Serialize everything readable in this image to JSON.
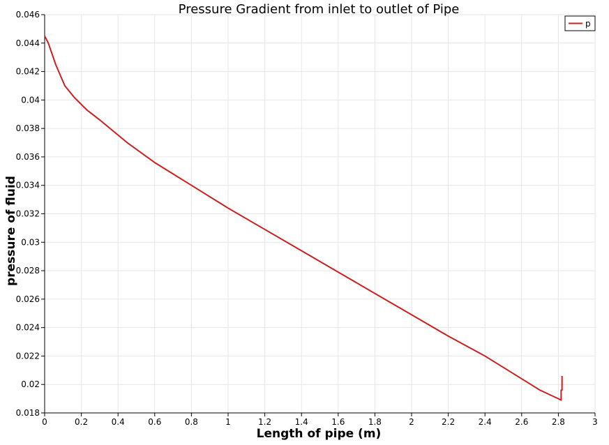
{
  "chart_data": {
    "type": "line",
    "title": "Pressure Gradient from inlet to outlet of Pipe",
    "xlabel": "Length of pipe (m)",
    "ylabel": "pressure of fluid",
    "xlim": [
      0,
      3
    ],
    "ylim": [
      0.018,
      0.046
    ],
    "x_ticks": [
      "0",
      "0.2",
      "0.4",
      "0.6",
      "0.8",
      "1",
      "1.2",
      "1.4",
      "1.6",
      "1.8",
      "2",
      "2.2",
      "2.4",
      "2.6",
      "2.8",
      "3"
    ],
    "x_tick_values": [
      0,
      0.2,
      0.4,
      0.6,
      0.8,
      1,
      1.2,
      1.4,
      1.6,
      1.8,
      2,
      2.2,
      2.4,
      2.6,
      2.8,
      3
    ],
    "y_ticks": [
      "0.018",
      "0.02",
      "0.022",
      "0.024",
      "0.026",
      "0.028",
      "0.03",
      "0.032",
      "0.034",
      "0.036",
      "0.038",
      "0.04",
      "0.042",
      "0.044",
      "0.046"
    ],
    "y_tick_values": [
      0.018,
      0.02,
      0.022,
      0.024,
      0.026,
      0.028,
      0.03,
      0.032,
      0.034,
      0.036,
      0.038,
      0.04,
      0.042,
      0.044,
      0.046
    ],
    "grid": true,
    "legend": {
      "position": "top-right",
      "entries": [
        "p"
      ]
    },
    "series": [
      {
        "name": "p",
        "color": "#cc1f1f",
        "points": [
          [
            0,
            0.0445
          ],
          [
            0.02,
            0.044
          ],
          [
            0.06,
            0.0425
          ],
          [
            0.11,
            0.041
          ],
          [
            0.16,
            0.0402
          ],
          [
            0.23,
            0.0393
          ],
          [
            0.3,
            0.0386
          ],
          [
            0.45,
            0.037
          ],
          [
            0.6,
            0.0356
          ],
          [
            0.7,
            0.0348
          ],
          [
            0.8,
            0.034
          ],
          [
            1.0,
            0.0324
          ],
          [
            1.2,
            0.0309
          ],
          [
            1.4,
            0.0294
          ],
          [
            1.6,
            0.0279
          ],
          [
            1.8,
            0.0264
          ],
          [
            2.0,
            0.0249
          ],
          [
            2.2,
            0.0234
          ],
          [
            2.4,
            0.022
          ],
          [
            2.6,
            0.0204
          ],
          [
            2.7,
            0.0196
          ],
          [
            2.75,
            0.0193
          ],
          [
            2.8,
            0.019
          ],
          [
            2.815,
            0.0189
          ],
          [
            2.815,
            0.0196
          ],
          [
            2.82,
            0.0196
          ],
          [
            2.82,
            0.0206
          ]
        ]
      }
    ]
  }
}
